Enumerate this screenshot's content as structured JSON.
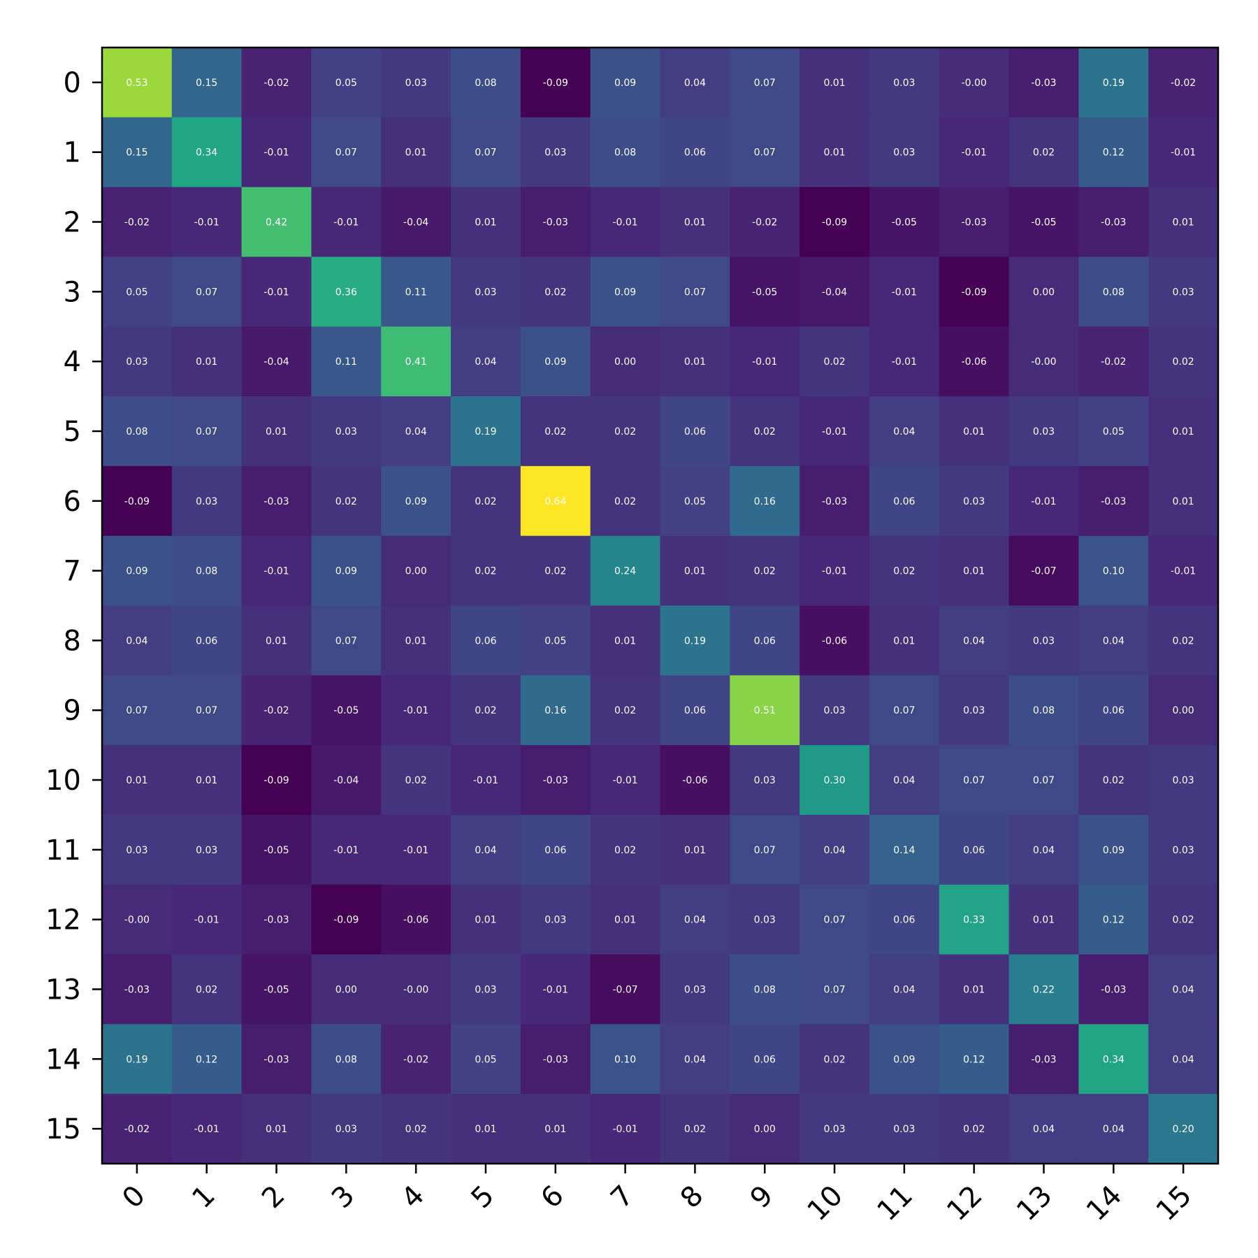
{
  "chart_data": {
    "type": "heatmap",
    "title": "",
    "xlabel": "",
    "ylabel": "",
    "colormap": "viridis",
    "value_range": [
      -0.09,
      0.64
    ],
    "x_categories": [
      "0",
      "1",
      "2",
      "3",
      "4",
      "5",
      "6",
      "7",
      "8",
      "9",
      "10",
      "11",
      "12",
      "13",
      "14",
      "15"
    ],
    "y_categories": [
      "0",
      "1",
      "2",
      "3",
      "4",
      "5",
      "6",
      "7",
      "8",
      "9",
      "10",
      "11",
      "12",
      "13",
      "14",
      "15"
    ],
    "values": [
      [
        0.53,
        0.15,
        -0.02,
        0.05,
        0.03,
        0.08,
        -0.09,
        0.09,
        0.04,
        0.07,
        0.01,
        0.03,
        -0.0,
        -0.03,
        0.19,
        -0.02
      ],
      [
        0.15,
        0.34,
        -0.01,
        0.07,
        0.01,
        0.07,
        0.03,
        0.08,
        0.06,
        0.07,
        0.01,
        0.03,
        -0.01,
        0.02,
        0.12,
        -0.01
      ],
      [
        -0.02,
        -0.01,
        0.42,
        -0.01,
        -0.04,
        0.01,
        -0.03,
        -0.01,
        0.01,
        -0.02,
        -0.09,
        -0.05,
        -0.03,
        -0.05,
        -0.03,
        0.01
      ],
      [
        0.05,
        0.07,
        -0.01,
        0.36,
        0.11,
        0.03,
        0.02,
        0.09,
        0.07,
        -0.05,
        -0.04,
        -0.01,
        -0.09,
        0.0,
        0.08,
        0.03
      ],
      [
        0.03,
        0.01,
        -0.04,
        0.11,
        0.41,
        0.04,
        0.09,
        0.0,
        0.01,
        -0.01,
        0.02,
        -0.01,
        -0.06,
        -0.0,
        -0.02,
        0.02
      ],
      [
        0.08,
        0.07,
        0.01,
        0.03,
        0.04,
        0.19,
        0.02,
        0.02,
        0.06,
        0.02,
        -0.01,
        0.04,
        0.01,
        0.03,
        0.05,
        0.01
      ],
      [
        -0.09,
        0.03,
        -0.03,
        0.02,
        0.09,
        0.02,
        0.64,
        0.02,
        0.05,
        0.16,
        -0.03,
        0.06,
        0.03,
        -0.01,
        -0.03,
        0.01
      ],
      [
        0.09,
        0.08,
        -0.01,
        0.09,
        0.0,
        0.02,
        0.02,
        0.24,
        0.01,
        0.02,
        -0.01,
        0.02,
        0.01,
        -0.07,
        0.1,
        -0.01
      ],
      [
        0.04,
        0.06,
        0.01,
        0.07,
        0.01,
        0.06,
        0.05,
        0.01,
        0.19,
        0.06,
        -0.06,
        0.01,
        0.04,
        0.03,
        0.04,
        0.02
      ],
      [
        0.07,
        0.07,
        -0.02,
        -0.05,
        -0.01,
        0.02,
        0.16,
        0.02,
        0.06,
        0.51,
        0.03,
        0.07,
        0.03,
        0.08,
        0.06,
        0.0
      ],
      [
        0.01,
        0.01,
        -0.09,
        -0.04,
        0.02,
        -0.01,
        -0.03,
        -0.01,
        -0.06,
        0.03,
        0.3,
        0.04,
        0.07,
        0.07,
        0.02,
        0.03
      ],
      [
        0.03,
        0.03,
        -0.05,
        -0.01,
        -0.01,
        0.04,
        0.06,
        0.02,
        0.01,
        0.07,
        0.04,
        0.14,
        0.06,
        0.04,
        0.09,
        0.03
      ],
      [
        -0.0,
        -0.01,
        -0.03,
        -0.09,
        -0.06,
        0.01,
        0.03,
        0.01,
        0.04,
        0.03,
        0.07,
        0.06,
        0.33,
        0.01,
        0.12,
        0.02
      ],
      [
        -0.03,
        0.02,
        -0.05,
        0.0,
        -0.0,
        0.03,
        -0.01,
        -0.07,
        0.03,
        0.08,
        0.07,
        0.04,
        0.01,
        0.22,
        -0.03,
        0.04
      ],
      [
        0.19,
        0.12,
        -0.03,
        0.08,
        -0.02,
        0.05,
        -0.03,
        0.1,
        0.04,
        0.06,
        0.02,
        0.09,
        0.12,
        -0.03,
        0.34,
        0.04
      ],
      [
        -0.02,
        -0.01,
        0.01,
        0.03,
        0.02,
        0.01,
        0.01,
        -0.01,
        0.02,
        0.0,
        0.03,
        0.03,
        0.02,
        0.04,
        0.04,
        0.2
      ]
    ],
    "cell_label_color": "#ffffff",
    "grid": false,
    "legend": "none"
  }
}
